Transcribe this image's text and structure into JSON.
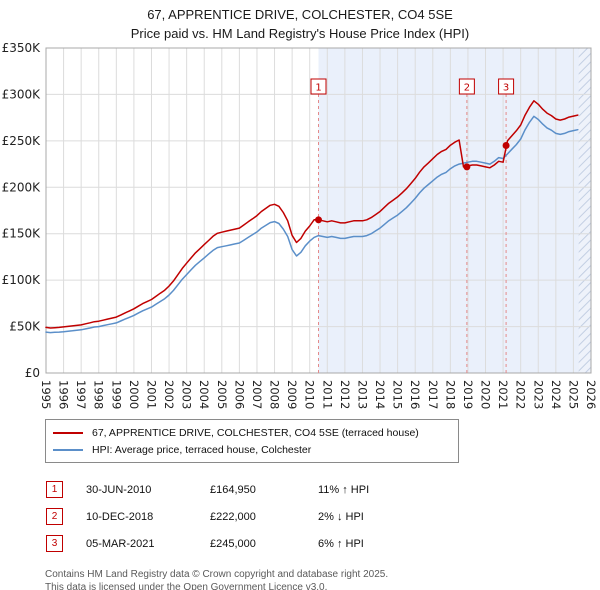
{
  "chart_data": {
    "type": "line",
    "title": "67, APPRENTICE DRIVE, COLCHESTER, CO4 5SE",
    "subtitle": "Price paid vs. HM Land Registry's House Price Index (HPI)",
    "x_range": [
      1995,
      2026
    ],
    "y_range": [
      0,
      350
    ],
    "y_unit": "GBP thousands",
    "y_tick_values": [
      0,
      50,
      100,
      150,
      200,
      250,
      300,
      350
    ],
    "y_tick_labels": [
      "£0",
      "£50K",
      "£100K",
      "£150K",
      "£200K",
      "£250K",
      "£300K",
      "£350K"
    ],
    "x_ticks": [
      1995,
      1996,
      1997,
      1998,
      1999,
      2000,
      2001,
      2002,
      2003,
      2004,
      2005,
      2006,
      2007,
      2008,
      2009,
      2010,
      2011,
      2012,
      2013,
      2014,
      2015,
      2016,
      2017,
      2018,
      2019,
      2020,
      2021,
      2022,
      2023,
      2024,
      2025,
      2026
    ],
    "grid": true,
    "legend_position": "below",
    "shade_from": 2010.5,
    "hatch_from": 2025.3,
    "x_start": 1995,
    "x_step": 0.25,
    "series": [
      {
        "name": "67, APPRENTICE DRIVE, COLCHESTER, CO4 5SE (terraced house)",
        "color": "#c00000",
        "values": [
          49.1,
          48.5,
          48.8,
          49.1,
          49.6,
          50.2,
          50.7,
          51.3,
          51.8,
          53,
          54.1,
          55.2,
          55.8,
          56.9,
          58,
          59.1,
          60.2,
          62.4,
          64.7,
          66.9,
          69.1,
          71.9,
          74.7,
          76.9,
          79.2,
          82.5,
          85.9,
          89.2,
          93.7,
          99.2,
          105.9,
          112.6,
          118.2,
          123.8,
          129.3,
          133.8,
          138.3,
          142.7,
          147.2,
          150.5,
          151.6,
          152.8,
          153.9,
          155,
          156.1,
          159.4,
          162.8,
          166.1,
          169.5,
          173.9,
          177.3,
          180.6,
          181.7,
          179.5,
          172.8,
          163.9,
          148.3,
          140.5,
          145,
          152.8,
          158.3,
          164.95,
          165,
          163.9,
          162.8,
          163.9,
          162.8,
          161.7,
          161.7,
          162.8,
          163.9,
          163.9,
          163.9,
          165,
          167.3,
          170.6,
          173.9,
          178.4,
          182.9,
          186.2,
          189.6,
          194,
          198.5,
          204,
          209.6,
          216.3,
          221.9,
          226.3,
          230.8,
          235.3,
          238.6,
          240.8,
          245.3,
          248.6,
          250.9,
          222,
          223,
          224,
          224,
          223,
          222,
          221,
          224,
          228,
          227,
          250.2,
          255.5,
          260.8,
          267.1,
          277.7,
          286.2,
          293.1,
          289.4,
          284.1,
          279.9,
          277.2,
          273.5,
          272.4,
          273.5,
          275.6,
          276.7,
          277.7
        ]
      },
      {
        "name": "HPI: Average price, terraced house, Colchester",
        "color": "#5b8fc9",
        "values": [
          44,
          43.5,
          43.8,
          44,
          44.5,
          45,
          45.5,
          46,
          46.5,
          47.5,
          48.5,
          49.5,
          50,
          51,
          52,
          53,
          54,
          56,
          58,
          60,
          62,
          64.5,
          67,
          69,
          71,
          74,
          77,
          80,
          84,
          89,
          95,
          101,
          106,
          111,
          116,
          120,
          124,
          128,
          132,
          135,
          136,
          137,
          138,
          139,
          140,
          143,
          146,
          149,
          152,
          156,
          159,
          162,
          163,
          161,
          155,
          147,
          133,
          126,
          130,
          137,
          142,
          146,
          148,
          147,
          146,
          147,
          146,
          145,
          145,
          146,
          147,
          147,
          147,
          148,
          150,
          153,
          156,
          160,
          164,
          167,
          170,
          174,
          178,
          183,
          188,
          194,
          199,
          203,
          207,
          211,
          214,
          216,
          220,
          223,
          225,
          226,
          227,
          228,
          228,
          227,
          226,
          225,
          228,
          232,
          231,
          236,
          241,
          246,
          252,
          262,
          270,
          276.5,
          273,
          268,
          264,
          261.5,
          258,
          257,
          258,
          260,
          261,
          262
        ]
      }
    ],
    "sales": [
      {
        "num": "1",
        "x": 2010.5,
        "y": 164.95
      },
      {
        "num": "2",
        "x": 2018.94,
        "y": 222
      },
      {
        "num": "3",
        "x": 2021.17,
        "y": 245
      }
    ]
  },
  "transactions": [
    {
      "num": "1",
      "date": "30-JUN-2010",
      "price": "£164,950",
      "hpi": "11% ↑ HPI"
    },
    {
      "num": "2",
      "date": "10-DEC-2018",
      "price": "£222,000",
      "hpi": "2% ↓ HPI"
    },
    {
      "num": "3",
      "date": "05-MAR-2021",
      "price": "£245,000",
      "hpi": "6% ↑ HPI"
    }
  ],
  "footer": {
    "line1": "Contains HM Land Registry data © Crown copyright and database right 2025.",
    "line2": "This data is licensed under the Open Government Licence v3.0."
  },
  "colors": {
    "property_line": "#c00000",
    "hpi_line": "#5b8fc9",
    "shade": "#eaf0fb",
    "grid": "#dcdcdc",
    "sale_dash": "#e48a8a"
  }
}
